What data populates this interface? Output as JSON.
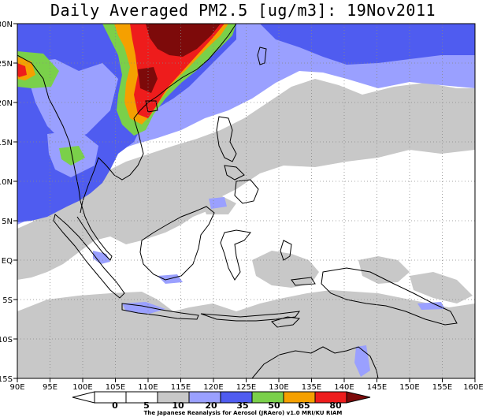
{
  "title": "Daily Averaged PM2.5 [ug/m3]: 19Nov2011",
  "credit": "The Japanese Reanalysis for Aerosol (JRAero) v1.0 MRI/KU RIAM",
  "map": {
    "lon_range": [
      90,
      160
    ],
    "lat_range": [
      -15,
      30
    ],
    "lon_ticks": [
      "90E",
      "95E",
      "100E",
      "105E",
      "110E",
      "115E",
      "120E",
      "125E",
      "130E",
      "135E",
      "140E",
      "145E",
      "150E",
      "155E",
      "160E"
    ],
    "lat_ticks": [
      "30N",
      "25N",
      "20N",
      "15N",
      "10N",
      "5N",
      "EQ",
      "5S",
      "10S",
      "15S"
    ],
    "gridlines": "dotted",
    "ocean_color": "#ffffff",
    "coastline_color": "#000000"
  },
  "colorbar": {
    "levels": [
      "0",
      "5",
      "10",
      "20",
      "35",
      "50",
      "65",
      "80"
    ],
    "colors": [
      "#ffffff",
      "#ffffff",
      "#c8c8c8",
      "#9aa0ff",
      "#4f5cf0",
      "#7ad04a",
      "#f5a000",
      "#ee1c1c",
      "#7d0a0a"
    ]
  }
}
